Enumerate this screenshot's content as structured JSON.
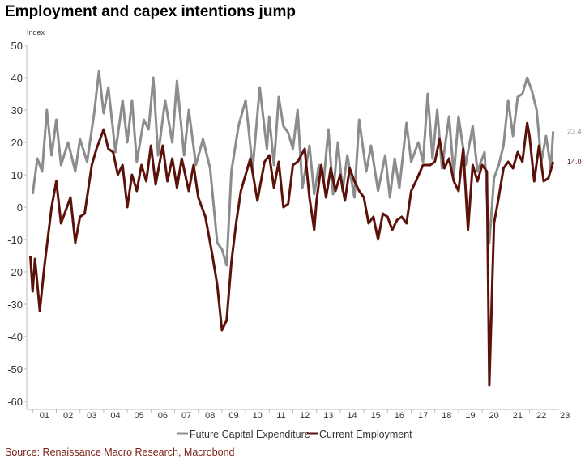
{
  "title": "Employment and capex intentions jump",
  "source": "Source: Renaissance Macro Research, Macrobond",
  "chart_data": {
    "type": "line",
    "ylabel": "Index",
    "ylim": [
      -60,
      50
    ],
    "yticks": [
      50,
      40,
      30,
      20,
      10,
      0,
      -10,
      -20,
      -30,
      -40,
      -50,
      -60
    ],
    "xlim": [
      2000.75,
      2023.25
    ],
    "xticks": [
      "01",
      "02",
      "03",
      "04",
      "05",
      "06",
      "07",
      "08",
      "09",
      "10",
      "11",
      "12",
      "13",
      "14",
      "15",
      "16",
      "17",
      "18",
      "19",
      "20",
      "21",
      "22",
      "23"
    ],
    "legend_position": "bottom",
    "grid": false,
    "end_labels": {
      "capex": "23.4",
      "employment": "14.0"
    },
    "series": [
      {
        "name": "Future Capital Expenditure",
        "color": "#8c8c8c",
        "points": [
          [
            2001.0,
            4
          ],
          [
            2001.2,
            15
          ],
          [
            2001.4,
            11
          ],
          [
            2001.6,
            30
          ],
          [
            2001.8,
            16
          ],
          [
            2002.0,
            27
          ],
          [
            2002.2,
            13
          ],
          [
            2002.5,
            20
          ],
          [
            2002.8,
            11
          ],
          [
            2003.0,
            21
          ],
          [
            2003.3,
            14
          ],
          [
            2003.6,
            29
          ],
          [
            2003.8,
            42
          ],
          [
            2004.0,
            29
          ],
          [
            2004.2,
            37
          ],
          [
            2004.5,
            17
          ],
          [
            2004.8,
            33
          ],
          [
            2005.0,
            20
          ],
          [
            2005.2,
            33
          ],
          [
            2005.4,
            14
          ],
          [
            2005.7,
            27
          ],
          [
            2005.9,
            24
          ],
          [
            2006.1,
            40
          ],
          [
            2006.3,
            16
          ],
          [
            2006.6,
            33
          ],
          [
            2006.9,
            20
          ],
          [
            2007.1,
            39
          ],
          [
            2007.4,
            16
          ],
          [
            2007.6,
            30
          ],
          [
            2007.9,
            13
          ],
          [
            2008.2,
            21
          ],
          [
            2008.5,
            12
          ],
          [
            2008.8,
            -11
          ],
          [
            2009.0,
            -13
          ],
          [
            2009.2,
            -18
          ],
          [
            2009.4,
            11
          ],
          [
            2009.7,
            25
          ],
          [
            2010.0,
            33
          ],
          [
            2010.3,
            12
          ],
          [
            2010.6,
            37
          ],
          [
            2010.9,
            18
          ],
          [
            2011.0,
            28
          ],
          [
            2011.2,
            13
          ],
          [
            2011.4,
            34
          ],
          [
            2011.6,
            25
          ],
          [
            2011.8,
            23
          ],
          [
            2012.0,
            18
          ],
          [
            2012.2,
            30
          ],
          [
            2012.4,
            6
          ],
          [
            2012.7,
            19
          ],
          [
            2012.9,
            4
          ],
          [
            2013.1,
            13
          ],
          [
            2013.3,
            8
          ],
          [
            2013.5,
            24
          ],
          [
            2013.7,
            4
          ],
          [
            2013.9,
            20
          ],
          [
            2014.1,
            5
          ],
          [
            2014.3,
            16
          ],
          [
            2014.6,
            3
          ],
          [
            2014.8,
            27
          ],
          [
            2015.1,
            11
          ],
          [
            2015.3,
            19
          ],
          [
            2015.6,
            5
          ],
          [
            2015.9,
            16
          ],
          [
            2016.1,
            3
          ],
          [
            2016.3,
            15
          ],
          [
            2016.5,
            6
          ],
          [
            2016.8,
            26
          ],
          [
            2017.0,
            14
          ],
          [
            2017.3,
            20
          ],
          [
            2017.5,
            14
          ],
          [
            2017.7,
            35
          ],
          [
            2017.9,
            15
          ],
          [
            2018.1,
            30
          ],
          [
            2018.3,
            12
          ],
          [
            2018.6,
            28
          ],
          [
            2018.8,
            10
          ],
          [
            2019.0,
            28
          ],
          [
            2019.3,
            13
          ],
          [
            2019.6,
            25
          ],
          [
            2019.8,
            11
          ],
          [
            2020.1,
            17
          ],
          [
            2020.3,
            -11
          ],
          [
            2020.5,
            9
          ],
          [
            2020.7,
            13
          ],
          [
            2020.9,
            19
          ],
          [
            2021.1,
            33
          ],
          [
            2021.3,
            22
          ],
          [
            2021.5,
            34
          ],
          [
            2021.7,
            35
          ],
          [
            2021.9,
            40
          ],
          [
            2022.1,
            36
          ],
          [
            2022.3,
            30
          ],
          [
            2022.5,
            14
          ],
          [
            2022.7,
            22
          ],
          [
            2022.9,
            12
          ],
          [
            2023.0,
            23.4
          ]
        ]
      },
      {
        "name": "Current Employment",
        "color": "#5c1209",
        "points": [
          [
            2000.9,
            -15
          ],
          [
            2001.0,
            -26
          ],
          [
            2001.1,
            -16
          ],
          [
            2001.3,
            -32
          ],
          [
            2001.5,
            -18
          ],
          [
            2001.8,
            0
          ],
          [
            2002.0,
            8
          ],
          [
            2002.2,
            -5
          ],
          [
            2002.4,
            -1
          ],
          [
            2002.6,
            3
          ],
          [
            2002.8,
            -11
          ],
          [
            2003.0,
            -3
          ],
          [
            2003.2,
            -2
          ],
          [
            2003.5,
            13
          ],
          [
            2003.7,
            18
          ],
          [
            2004.0,
            24
          ],
          [
            2004.2,
            18
          ],
          [
            2004.4,
            17
          ],
          [
            2004.6,
            10
          ],
          [
            2004.8,
            13
          ],
          [
            2005.0,
            0
          ],
          [
            2005.2,
            10
          ],
          [
            2005.4,
            5
          ],
          [
            2005.6,
            13
          ],
          [
            2005.8,
            8
          ],
          [
            2006.0,
            19
          ],
          [
            2006.2,
            7
          ],
          [
            2006.5,
            19
          ],
          [
            2006.7,
            8
          ],
          [
            2006.9,
            15
          ],
          [
            2007.1,
            6
          ],
          [
            2007.3,
            15
          ],
          [
            2007.6,
            5
          ],
          [
            2007.8,
            13
          ],
          [
            2008.0,
            3
          ],
          [
            2008.3,
            -3
          ],
          [
            2008.6,
            -15
          ],
          [
            2008.8,
            -24
          ],
          [
            2009.0,
            -38
          ],
          [
            2009.2,
            -35
          ],
          [
            2009.4,
            -17
          ],
          [
            2009.6,
            -5
          ],
          [
            2009.8,
            5
          ],
          [
            2010.0,
            10
          ],
          [
            2010.2,
            15
          ],
          [
            2010.5,
            2
          ],
          [
            2010.8,
            14
          ],
          [
            2011.0,
            16
          ],
          [
            2011.2,
            6
          ],
          [
            2011.4,
            14
          ],
          [
            2011.6,
            0
          ],
          [
            2011.8,
            1
          ],
          [
            2012.0,
            13
          ],
          [
            2012.2,
            14
          ],
          [
            2012.5,
            18
          ],
          [
            2012.7,
            3
          ],
          [
            2012.9,
            -7
          ],
          [
            2013.0,
            2
          ],
          [
            2013.2,
            13
          ],
          [
            2013.4,
            3
          ],
          [
            2013.6,
            12
          ],
          [
            2013.8,
            5
          ],
          [
            2014.0,
            10
          ],
          [
            2014.2,
            2
          ],
          [
            2014.4,
            12
          ],
          [
            2014.6,
            8
          ],
          [
            2014.8,
            5
          ],
          [
            2015.0,
            3
          ],
          [
            2015.2,
            -5
          ],
          [
            2015.4,
            -3
          ],
          [
            2015.6,
            -10
          ],
          [
            2015.8,
            -2
          ],
          [
            2016.0,
            -3
          ],
          [
            2016.2,
            -7
          ],
          [
            2016.4,
            -4
          ],
          [
            2016.6,
            -3
          ],
          [
            2016.8,
            -5
          ],
          [
            2017.0,
            5
          ],
          [
            2017.2,
            8
          ],
          [
            2017.5,
            13
          ],
          [
            2017.8,
            13
          ],
          [
            2018.0,
            14
          ],
          [
            2018.2,
            21
          ],
          [
            2018.4,
            12
          ],
          [
            2018.6,
            15
          ],
          [
            2018.8,
            8
          ],
          [
            2019.0,
            5
          ],
          [
            2019.2,
            18
          ],
          [
            2019.4,
            -7
          ],
          [
            2019.6,
            13
          ],
          [
            2019.8,
            8
          ],
          [
            2020.0,
            13
          ],
          [
            2020.2,
            11
          ],
          [
            2020.3,
            -55
          ],
          [
            2020.5,
            -5
          ],
          [
            2020.7,
            3
          ],
          [
            2020.9,
            12
          ],
          [
            2021.1,
            14
          ],
          [
            2021.3,
            12
          ],
          [
            2021.5,
            17
          ],
          [
            2021.7,
            14
          ],
          [
            2021.9,
            26
          ],
          [
            2022.0,
            22
          ],
          [
            2022.2,
            8
          ],
          [
            2022.4,
            19
          ],
          [
            2022.6,
            8
          ],
          [
            2022.8,
            9
          ],
          [
            2023.0,
            14.0
          ]
        ]
      }
    ]
  }
}
